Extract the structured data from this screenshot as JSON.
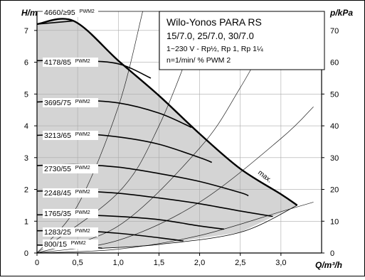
{
  "chart_data": {
    "type": "line",
    "title": "Wilo-Yonos PARA RS",
    "subtitle_lines": [
      "15/7.0, 25/7.0, 30/7.0",
      "1~230 V - Rp½, Rp 1, Rp 1¼",
      "n=1/min/ % PWM 2"
    ],
    "xlabel": "Q/m³/h",
    "ylabel_left": "H/m",
    "ylabel_right": "p/kPa",
    "xlim": [
      0,
      3.5
    ],
    "ylim_left": [
      0,
      7.6
    ],
    "ylim_right": [
      0,
      76
    ],
    "x_ticks": [
      0,
      0.5,
      1,
      1.5,
      2,
      2.5,
      3
    ],
    "x_tick_labels": [
      "0",
      "0,5",
      "1,0",
      "1,5",
      "2,0",
      "2,5",
      "3,0"
    ],
    "y_ticks_left": [
      0,
      1,
      2,
      3,
      4,
      5,
      6,
      7
    ],
    "y_ticks_right": [
      0,
      10,
      20,
      30,
      40,
      50,
      60,
      70
    ],
    "grid": true,
    "max_label": "max.",
    "max_curve": [
      [
        0,
        7.2
      ],
      [
        0.45,
        7.3
      ],
      [
        1.0,
        6.05
      ],
      [
        1.5,
        4.95
      ],
      [
        2.0,
        3.75
      ],
      [
        2.5,
        2.65
      ],
      [
        3.0,
        1.85
      ],
      [
        3.2,
        1.5
      ]
    ],
    "series": [
      {
        "name": "4660/≥95",
        "suffix": "PWM2",
        "values": [
          [
            0,
            7.2
          ],
          [
            0.45,
            7.3
          ]
        ]
      },
      {
        "name": "4178/85",
        "suffix": "PWM2",
        "values": [
          [
            0,
            6.05
          ],
          [
            0.5,
            6.05
          ],
          [
            1.0,
            5.95
          ],
          [
            1.4,
            5.5
          ]
        ]
      },
      {
        "name": "3695/75",
        "suffix": "PWM2",
        "values": [
          [
            0,
            4.75
          ],
          [
            0.5,
            4.8
          ],
          [
            1.0,
            4.72
          ],
          [
            1.5,
            4.4
          ],
          [
            1.9,
            3.95
          ]
        ]
      },
      {
        "name": "3213/65",
        "suffix": "PWM2",
        "values": [
          [
            0,
            3.7
          ],
          [
            0.5,
            3.75
          ],
          [
            1.0,
            3.65
          ],
          [
            1.5,
            3.42
          ],
          [
            2.0,
            3.0
          ],
          [
            2.15,
            2.85
          ]
        ]
      },
      {
        "name": "2730/55",
        "suffix": "PWM2",
        "values": [
          [
            0,
            2.75
          ],
          [
            0.5,
            2.78
          ],
          [
            1.0,
            2.7
          ],
          [
            1.5,
            2.5
          ],
          [
            2.0,
            2.25
          ],
          [
            2.5,
            1.9
          ],
          [
            2.6,
            1.8
          ]
        ]
      },
      {
        "name": "2248/45",
        "suffix": "PWM2",
        "values": [
          [
            0,
            1.95
          ],
          [
            0.5,
            1.95
          ],
          [
            1.0,
            1.88
          ],
          [
            1.5,
            1.73
          ],
          [
            2.0,
            1.55
          ],
          [
            2.5,
            1.32
          ],
          [
            2.9,
            1.15
          ]
        ]
      },
      {
        "name": "1765/35",
        "suffix": "PWM2",
        "values": [
          [
            0,
            1.2
          ],
          [
            0.5,
            1.2
          ],
          [
            1.0,
            1.15
          ],
          [
            1.5,
            1.05
          ],
          [
            2.0,
            0.85
          ],
          [
            2.3,
            0.75
          ]
        ]
      },
      {
        "name": "1283/25",
        "suffix": "PWM2",
        "values": [
          [
            0,
            0.7
          ],
          [
            0.5,
            0.7
          ],
          [
            1.0,
            0.62
          ],
          [
            1.5,
            0.48
          ],
          [
            1.8,
            0.38
          ]
        ]
      },
      {
        "name": "800/15",
        "suffix": "PWM2",
        "values": [
          [
            0,
            0.25
          ],
          [
            0.5,
            0.22
          ],
          [
            0.8,
            0.15
          ]
        ]
      }
    ],
    "system_curves": [
      [
        [
          0,
          0
        ],
        [
          0.5,
          1.5
        ],
        [
          1.0,
          4.6
        ],
        [
          1.3,
          7.6
        ]
      ],
      [
        [
          0,
          0
        ],
        [
          1.0,
          1.9
        ],
        [
          1.5,
          4.0
        ],
        [
          2.0,
          7.2
        ],
        [
          2.05,
          7.6
        ]
      ],
      [
        [
          0,
          0
        ],
        [
          1.0,
          0.85
        ],
        [
          2.0,
          3.3
        ],
        [
          2.5,
          5.2
        ],
        [
          3.0,
          7.5
        ]
      ],
      [
        [
          0,
          0
        ],
        [
          1.0,
          0.4
        ],
        [
          2.0,
          1.6
        ],
        [
          3.0,
          3.6
        ],
        [
          3.4,
          4.6
        ]
      ],
      [
        [
          0,
          0
        ],
        [
          1.0,
          0.12
        ],
        [
          2.0,
          0.55
        ],
        [
          3.0,
          1.3
        ],
        [
          3.4,
          1.6
        ]
      ]
    ],
    "bottom_curve": [
      [
        0.8,
        0.15
      ],
      [
        1.5,
        0.27
      ],
      [
        2.5,
        0.65
      ],
      [
        3.2,
        1.5
      ]
    ]
  }
}
